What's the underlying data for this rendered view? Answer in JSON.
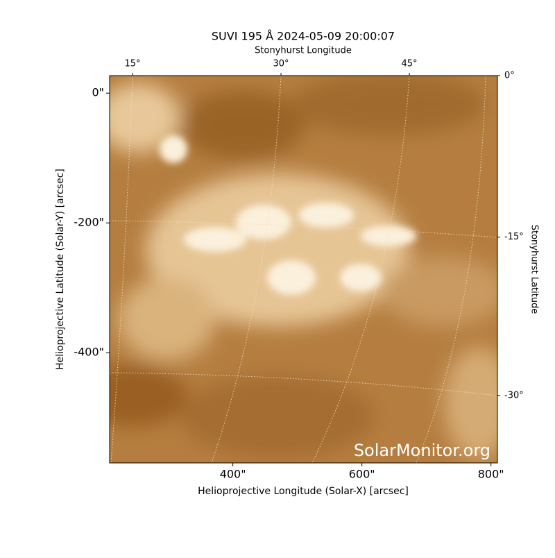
{
  "chart_data": {
    "type": "image",
    "title": "SUVI 195 Å 2024-05-09 20:00:07",
    "x_label": "Helioprojective Longitude (Solar-X) [arcsec]",
    "y_label": "Helioprojective Latitude (Solar-Y) [arcsec]",
    "x2_label": "Stonyhurst Longitude",
    "y2_label": "Stonyhurst Latitude",
    "watermark": "SolarMonitor.org",
    "xlim": [
      209,
      810
    ],
    "ylim": [
      -570,
      27
    ],
    "xticks": [
      {
        "value": 400,
        "label": "400\""
      },
      {
        "value": 600,
        "label": "600\""
      },
      {
        "value": 800,
        "label": "800\""
      }
    ],
    "yticks": [
      {
        "value": 0,
        "label": "0\""
      },
      {
        "value": -200,
        "label": "-200\""
      },
      {
        "value": -400,
        "label": "-400\""
      }
    ],
    "x2ticks": [
      {
        "value": 244.5,
        "label": "15°"
      },
      {
        "value": 474.6,
        "label": "30°"
      },
      {
        "value": 673.5,
        "label": "45°"
      }
    ],
    "y2ticks": [
      {
        "value": 27,
        "label": "0°"
      },
      {
        "value": -222,
        "label": "-15°"
      },
      {
        "value": -466,
        "label": "-30°"
      }
    ]
  }
}
